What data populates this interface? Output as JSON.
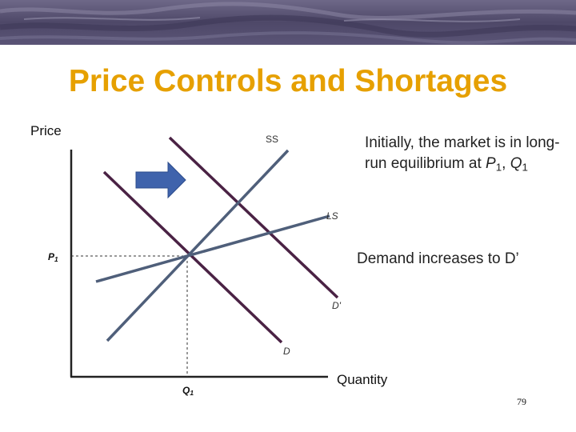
{
  "title": "Price Controls and Shortages",
  "colors": {
    "title": "#E6A000",
    "banner": "#5E5878",
    "demand_curve": "#4A2244",
    "supply_curves": "#4F5F7A",
    "arrow": "#3F63AC"
  },
  "axes": {
    "y_label": "Price",
    "x_label": "Quantity",
    "price_point": {
      "letter": "P",
      "sub": "1"
    },
    "quantity_point": {
      "letter": "Q",
      "sub": "1"
    }
  },
  "curves": {
    "short_run_supply": "SS",
    "long_run_supply": "LS",
    "new_demand": "D'",
    "demand": "D"
  },
  "annotations": {
    "equilibrium_note": {
      "text": "Initially, the market is in long-run equilibrium at ",
      "p_letter": "P",
      "p_sub": "1",
      "separator": ", ",
      "q_letter": "Q",
      "q_sub": "1"
    },
    "demand_note": "Demand increases to D’"
  },
  "arrow_icon": "right-arrow-icon",
  "page_number": "79"
}
